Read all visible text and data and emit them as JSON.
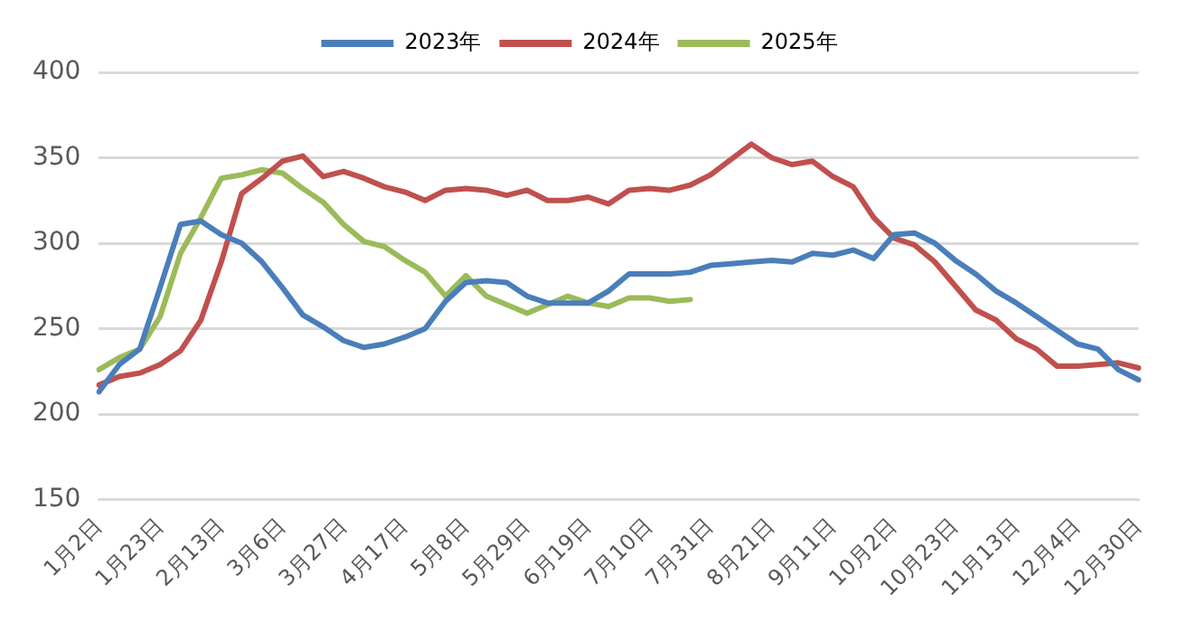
{
  "chart_data": {
    "type": "line",
    "categories": [
      "1月2日",
      null,
      null,
      "1月23日",
      null,
      null,
      "2月13日",
      null,
      null,
      "3月6日",
      null,
      null,
      "3月27日",
      null,
      null,
      "4月17日",
      null,
      null,
      "5月8日",
      null,
      null,
      "5月29日",
      null,
      null,
      "6月19日",
      null,
      null,
      "7月10日",
      null,
      null,
      "7月31日",
      null,
      null,
      "8月21日",
      null,
      null,
      "9月11日",
      null,
      null,
      "10月2日",
      null,
      null,
      "10月23日",
      null,
      null,
      "11月13日",
      null,
      null,
      "12月4日",
      null,
      null,
      "12月30日"
    ],
    "series": [
      {
        "name": "2023年",
        "color": "#4a7ebb",
        "values": [
          213,
          229,
          238,
          274,
          311,
          313,
          305,
          300,
          289,
          274,
          258,
          251,
          243,
          239,
          241,
          245,
          250,
          266,
          277,
          278,
          277,
          269,
          265,
          265,
          265,
          272,
          282,
          282,
          282,
          283,
          287,
          288,
          289,
          290,
          289,
          294,
          293,
          296,
          291,
          305,
          306,
          300,
          290,
          282,
          272,
          265,
          257,
          249,
          241,
          238,
          226,
          220
        ]
      },
      {
        "name": "2024年",
        "color": "#c0504d",
        "values": [
          217,
          222,
          224,
          229,
          237,
          255,
          289,
          329,
          338,
          348,
          351,
          339,
          342,
          338,
          333,
          330,
          325,
          331,
          332,
          331,
          328,
          331,
          325,
          325,
          327,
          323,
          331,
          332,
          331,
          334,
          340,
          349,
          358,
          350,
          346,
          348,
          339,
          333,
          315,
          303,
          299,
          289,
          275,
          261,
          255,
          244,
          238,
          228,
          228,
          229,
          230,
          227
        ]
      },
      {
        "name": "2025年",
        "color": "#9bbb59",
        "values": [
          226,
          233,
          238,
          257,
          294,
          315,
          338,
          340,
          343,
          341,
          332,
          324,
          311,
          301,
          298,
          290,
          283,
          269,
          281,
          269,
          264,
          259,
          264,
          269,
          265,
          263,
          268,
          268,
          266,
          267,
          null,
          null,
          null,
          null,
          null,
          null,
          null,
          null,
          null,
          null,
          null,
          null,
          null,
          null,
          null,
          null,
          null,
          null,
          null,
          null,
          null,
          null
        ]
      }
    ],
    "ylim": [
      150,
      400
    ],
    "yticks": [
      150,
      200,
      250,
      300,
      350,
      400
    ],
    "grid": "y",
    "legend": "top",
    "marker": "none",
    "line_style": "solid"
  }
}
